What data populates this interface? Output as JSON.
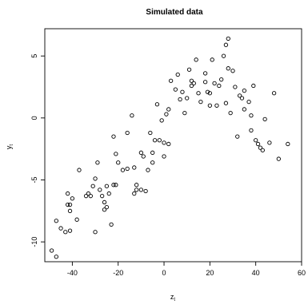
{
  "chart_data": {
    "type": "scatter",
    "title": "Simulated data",
    "xlabel": "z",
    "xlabel_sub": "t",
    "ylabel": "y",
    "ylabel_sub": "t",
    "xlim": [
      -52,
      60
    ],
    "ylim": [
      -11.6,
      7.2
    ],
    "xticks": [
      -40,
      -20,
      0,
      20,
      40,
      60
    ],
    "yticks": [
      -10,
      -5,
      0,
      5
    ],
    "grid": false,
    "legend": "none",
    "points": [
      [
        -49,
        -10.7
      ],
      [
        -47,
        -11.2
      ],
      [
        -47,
        -8.3
      ],
      [
        -45,
        -8.9
      ],
      [
        -43,
        -9.2
      ],
      [
        -41,
        -9.1
      ],
      [
        -42,
        -6.1
      ],
      [
        -42,
        -7.0
      ],
      [
        -41,
        -7.0
      ],
      [
        -41,
        -7.5
      ],
      [
        -40,
        -6.5
      ],
      [
        -38,
        -8.2
      ],
      [
        -37,
        -4.2
      ],
      [
        -34,
        -6.3
      ],
      [
        -33,
        -6.1
      ],
      [
        -32,
        -6.3
      ],
      [
        -31,
        -5.5
      ],
      [
        -30,
        -9.2
      ],
      [
        -30,
        -4.9
      ],
      [
        -29,
        -3.6
      ],
      [
        -28,
        -5.8
      ],
      [
        -27,
        -6.3
      ],
      [
        -26,
        -6.8
      ],
      [
        -26,
        -7.4
      ],
      [
        -25,
        -5.5
      ],
      [
        -25,
        -7.2
      ],
      [
        -24,
        -6.1
      ],
      [
        -23,
        -8.6
      ],
      [
        -22,
        -5.4
      ],
      [
        -21,
        -5.4
      ],
      [
        -21,
        -2.9
      ],
      [
        -22,
        -1.5
      ],
      [
        -20,
        -3.6
      ],
      [
        -18,
        -4.2
      ],
      [
        -16,
        -4.1
      ],
      [
        -16,
        -1.2
      ],
      [
        -14,
        0.2
      ],
      [
        -13,
        -4.0
      ],
      [
        -13,
        -6.1
      ],
      [
        -12,
        -5.8
      ],
      [
        -12,
        -5.4
      ],
      [
        -10,
        -2.8
      ],
      [
        -10,
        -5.8
      ],
      [
        -9,
        -3.1
      ],
      [
        -8,
        -5.9
      ],
      [
        -7,
        -4.2
      ],
      [
        -6,
        -1.2
      ],
      [
        -5,
        -3.6
      ],
      [
        -5,
        -2.8
      ],
      [
        -4,
        -1.8
      ],
      [
        -3,
        1.1
      ],
      [
        -2,
        -1.8
      ],
      [
        -1,
        -0.2
      ],
      [
        0,
        -2.0
      ],
      [
        0,
        -3.1
      ],
      [
        1,
        0.3
      ],
      [
        2,
        -2.1
      ],
      [
        2,
        0.7
      ],
      [
        3,
        3.0
      ],
      [
        5,
        2.3
      ],
      [
        6,
        3.5
      ],
      [
        7,
        1.5
      ],
      [
        8,
        2.1
      ],
      [
        9,
        0.4
      ],
      [
        10,
        1.6
      ],
      [
        11,
        3.9
      ],
      [
        12,
        3.0
      ],
      [
        12,
        2.6
      ],
      [
        13,
        2.8
      ],
      [
        14,
        4.7
      ],
      [
        15,
        2.0
      ],
      [
        16,
        1.3
      ],
      [
        18,
        2.9
      ],
      [
        18,
        3.6
      ],
      [
        19,
        2.1
      ],
      [
        20,
        2.0
      ],
      [
        20,
        1.0
      ],
      [
        21,
        4.7
      ],
      [
        22,
        2.8
      ],
      [
        23,
        1.0
      ],
      [
        24,
        2.6
      ],
      [
        25,
        3.1
      ],
      [
        26,
        5.0
      ],
      [
        27,
        5.9
      ],
      [
        27,
        1.2
      ],
      [
        28,
        6.4
      ],
      [
        28,
        4.0
      ],
      [
        29,
        0.4
      ],
      [
        30,
        3.8
      ],
      [
        31,
        2.5
      ],
      [
        32,
        -1.5
      ],
      [
        33,
        1.8
      ],
      [
        34,
        1.6
      ],
      [
        35,
        2.2
      ],
      [
        35,
        0.7
      ],
      [
        37,
        1.3
      ],
      [
        38,
        0.2
      ],
      [
        38,
        -1.0
      ],
      [
        39,
        2.6
      ],
      [
        40,
        -1.8
      ],
      [
        41,
        -2.1
      ],
      [
        42,
        -2.4
      ],
      [
        43,
        -2.6
      ],
      [
        44,
        -0.1
      ],
      [
        46,
        -2.0
      ],
      [
        48,
        2.0
      ],
      [
        50,
        -3.3
      ],
      [
        54,
        -2.1
      ]
    ]
  }
}
